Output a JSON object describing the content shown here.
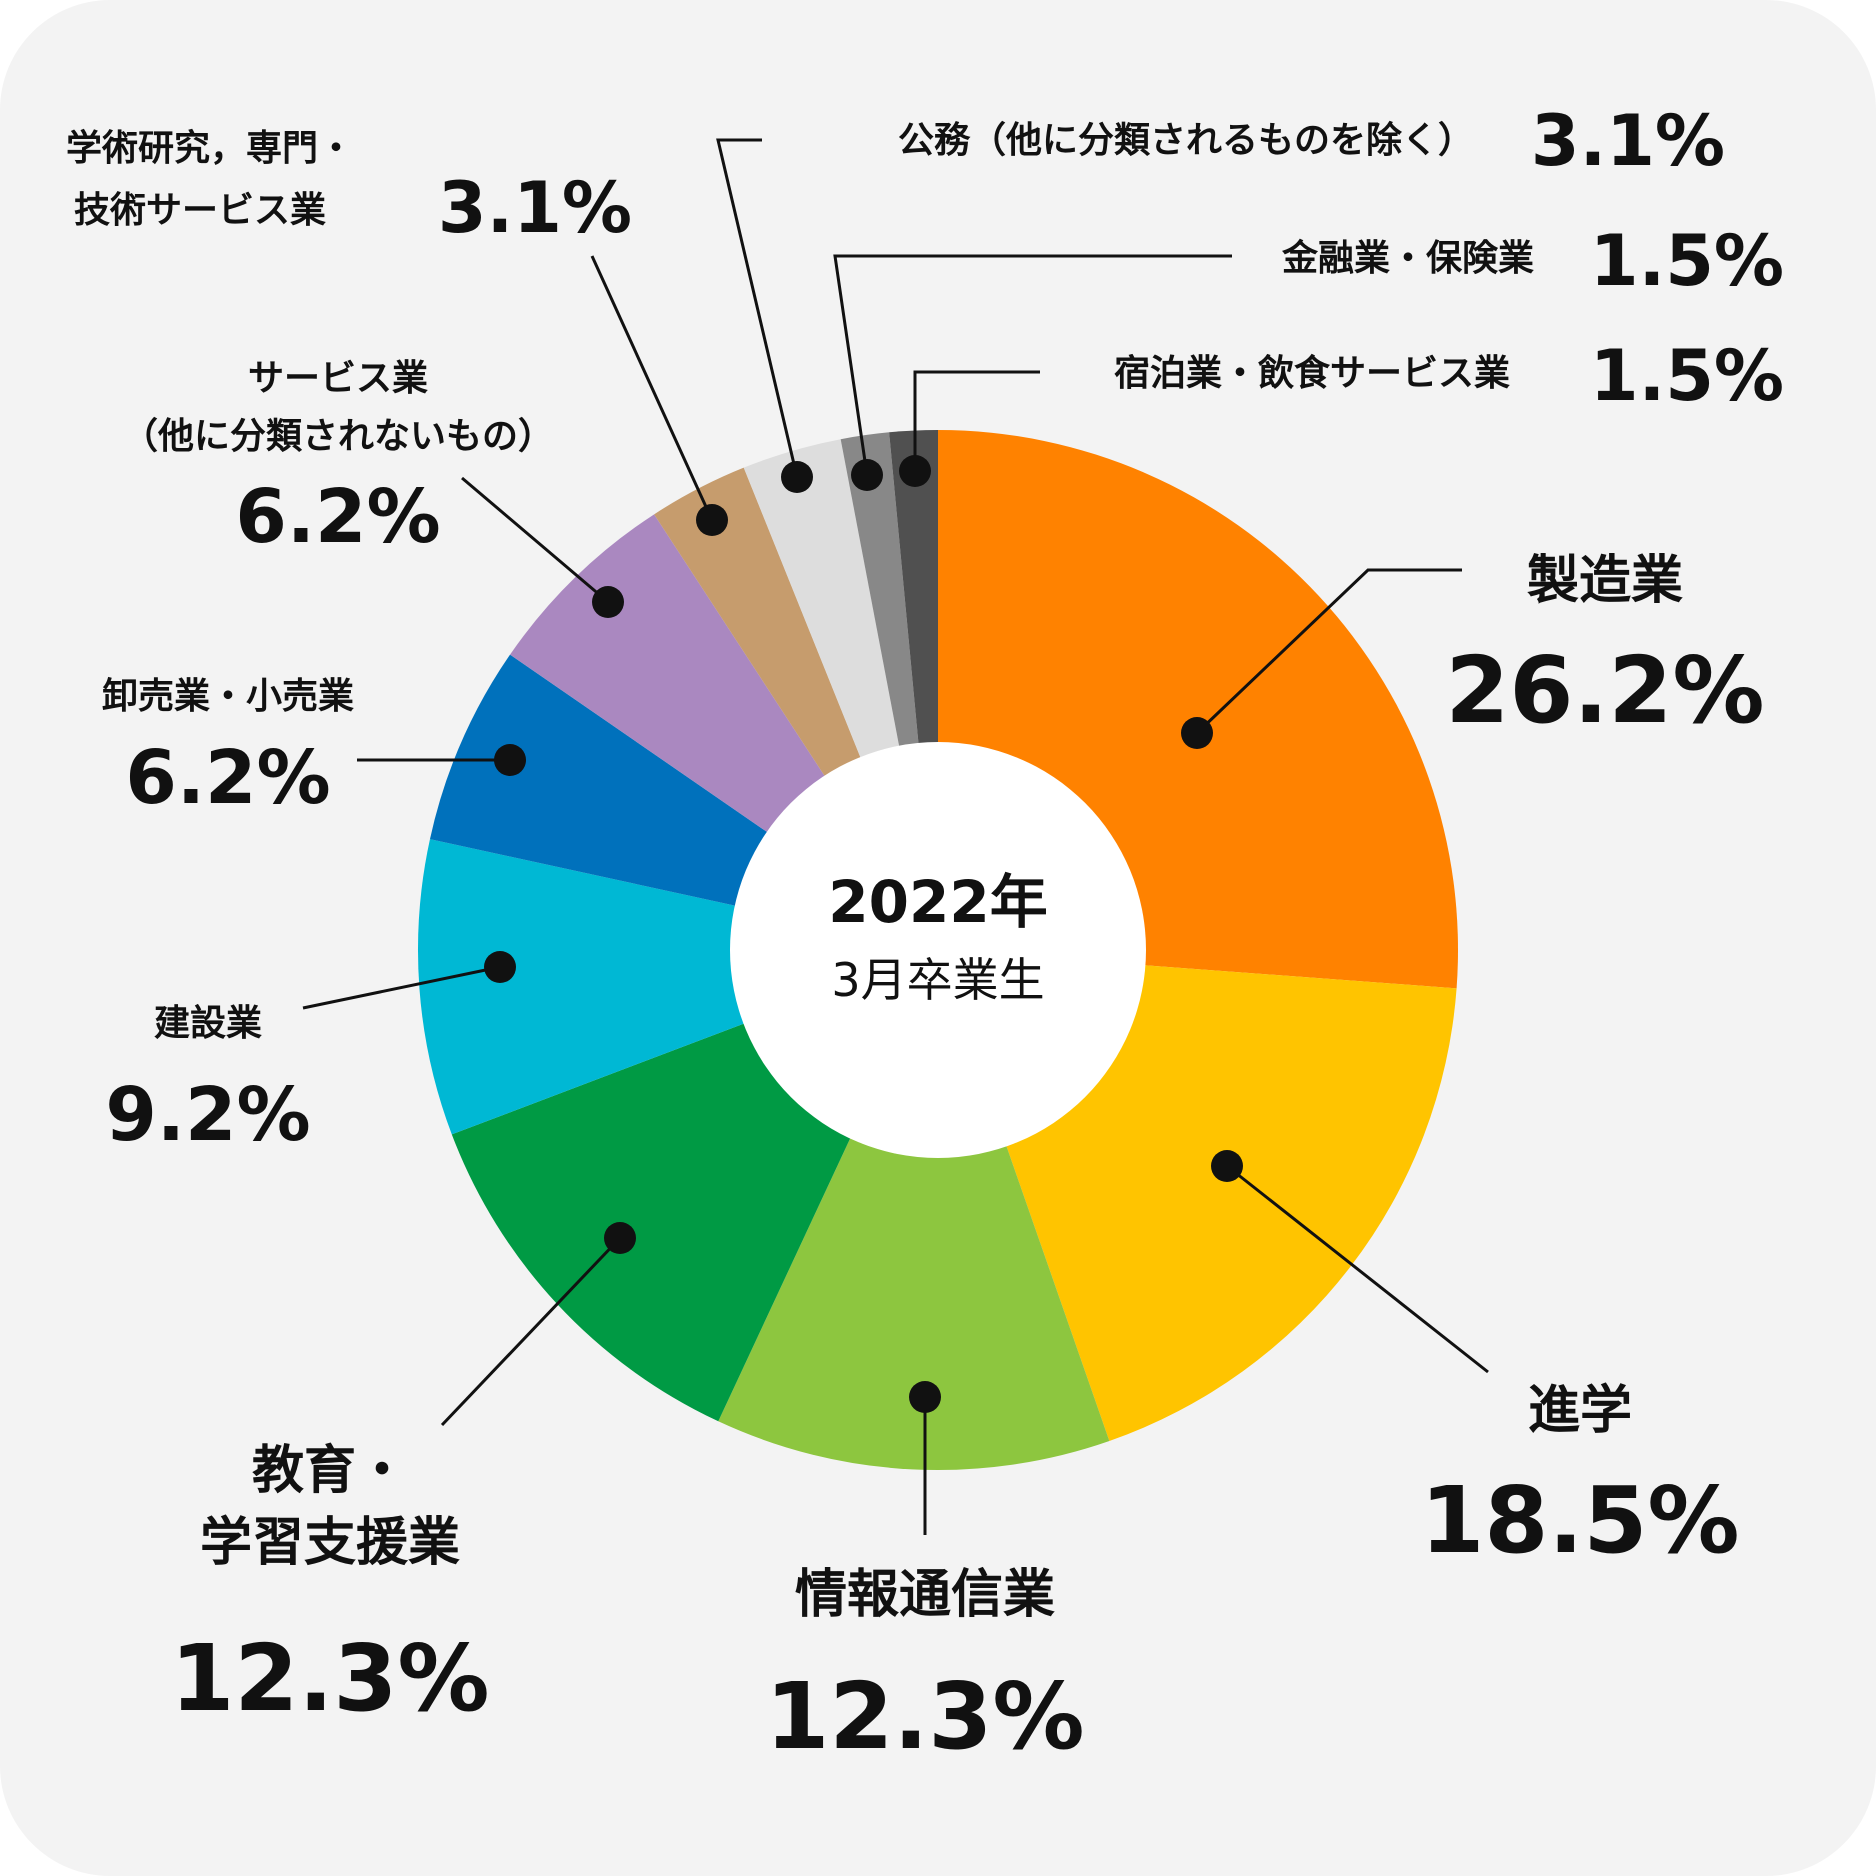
{
  "chart_data": {
    "type": "pie",
    "donut": true,
    "center_label": {
      "line1": "2022年",
      "line2": "3月卒業生"
    },
    "slices": [
      {
        "name": "製造業",
        "value": 26.2,
        "label": "26.2%",
        "color": "#FF8200"
      },
      {
        "name": "進学",
        "value": 18.5,
        "label": "18.5%",
        "color": "#FFC400"
      },
      {
        "name": "情報通信業",
        "value": 12.3,
        "label": "12.3%",
        "color": "#8DC63F"
      },
      {
        "name": "教育・学習支援業",
        "value": 12.3,
        "label": "12.3%",
        "color": "#009A44"
      },
      {
        "name": "建設業",
        "value": 9.2,
        "label": "9.2%",
        "color": "#00B8D4"
      },
      {
        "name": "卸売業・小売業",
        "value": 6.2,
        "label": "6.2%",
        "color": "#0071BC"
      },
      {
        "name": "サービス業（他に分類されないもの）",
        "value": 6.2,
        "label": "6.2%",
        "color": "#AA88C0"
      },
      {
        "name": "学術研究，専門・技術サービス業",
        "value": 3.1,
        "label": "3.1%",
        "color": "#C69C6D"
      },
      {
        "name": "公務（他に分類されるものを除く）",
        "value": 3.1,
        "label": "3.1%",
        "color": "#DDDDDD"
      },
      {
        "name": "金融業・保険業",
        "value": 1.5,
        "label": "1.5%",
        "color": "#888888"
      },
      {
        "name": "宿泊業・飲食サービス業",
        "value": 1.5,
        "label": "1.5%",
        "color": "#505050"
      }
    ],
    "display_labels": {
      "manufacturing": "製造業",
      "education_line1": "教育・",
      "education_line2": "学習支援業",
      "services_line1": "サービス業",
      "services_line2": "（他に分類されないもの）",
      "academic_line1": "学術研究，専門・",
      "academic_line2": "技術サービス業"
    }
  },
  "colors": {
    "background": "#F3F3F3",
    "leader_line": "#111111",
    "center_hole": "#FFFFFF"
  }
}
